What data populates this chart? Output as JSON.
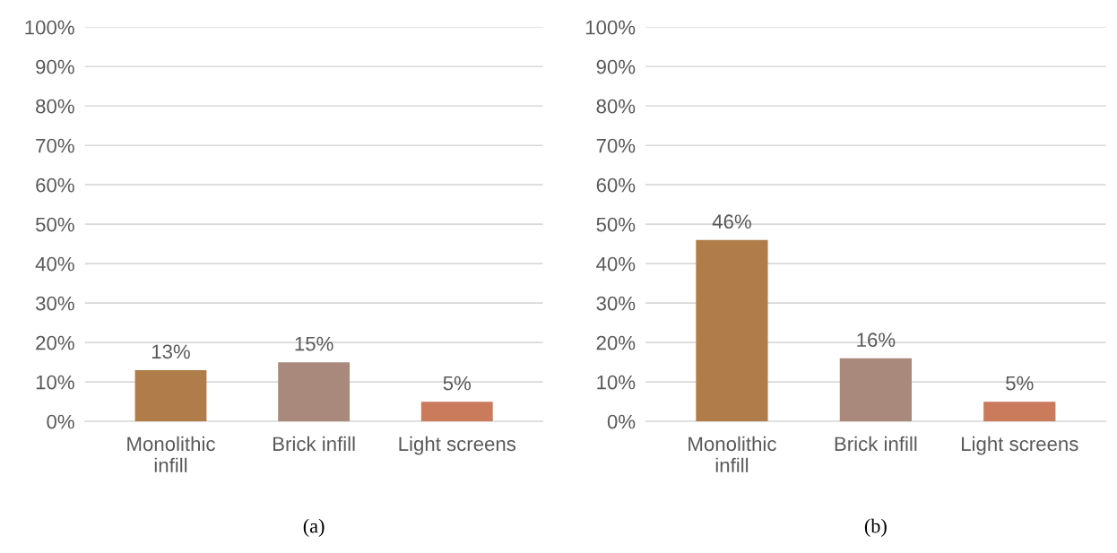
{
  "chart_data": [
    {
      "type": "bar",
      "title": "(a)",
      "categories": [
        "Monolithic\ninfill",
        "Brick infill",
        "Light screens"
      ],
      "values": [
        13,
        15,
        5
      ],
      "value_labels": [
        "13%",
        "15%",
        "5%"
      ],
      "colors": [
        "#b07d4a",
        "#a9897c",
        "#c97b5b"
      ],
      "ylim": [
        0,
        100
      ],
      "yticks": [
        {
          "value": 0,
          "label": "0%"
        },
        {
          "value": 10,
          "label": "10%"
        },
        {
          "value": 20,
          "label": "20%"
        },
        {
          "value": 30,
          "label": "30%"
        },
        {
          "value": 40,
          "label": "40%"
        },
        {
          "value": 50,
          "label": "50%"
        },
        {
          "value": 60,
          "label": "60%"
        },
        {
          "value": 70,
          "label": "70%"
        },
        {
          "value": 80,
          "label": "80%"
        },
        {
          "value": 90,
          "label": "90%"
        },
        {
          "value": 100,
          "label": "100%"
        }
      ],
      "grid": "y"
    },
    {
      "type": "bar",
      "title": "(b)",
      "categories": [
        "Monolithic\ninfill",
        "Brick infill",
        "Light screens"
      ],
      "values": [
        46,
        16,
        5
      ],
      "value_labels": [
        "46%",
        "16%",
        "5%"
      ],
      "colors": [
        "#b07d4a",
        "#a9897c",
        "#c97b5b"
      ],
      "ylim": [
        0,
        100
      ],
      "yticks": [
        {
          "value": 0,
          "label": "0%"
        },
        {
          "value": 10,
          "label": "10%"
        },
        {
          "value": 20,
          "label": "20%"
        },
        {
          "value": 30,
          "label": "30%"
        },
        {
          "value": 40,
          "label": "40%"
        },
        {
          "value": 50,
          "label": "50%"
        },
        {
          "value": 60,
          "label": "60%"
        },
        {
          "value": 70,
          "label": "70%"
        },
        {
          "value": 80,
          "label": "80%"
        },
        {
          "value": 90,
          "label": "90%"
        },
        {
          "value": 100,
          "label": "100%"
        }
      ],
      "grid": "y"
    }
  ]
}
